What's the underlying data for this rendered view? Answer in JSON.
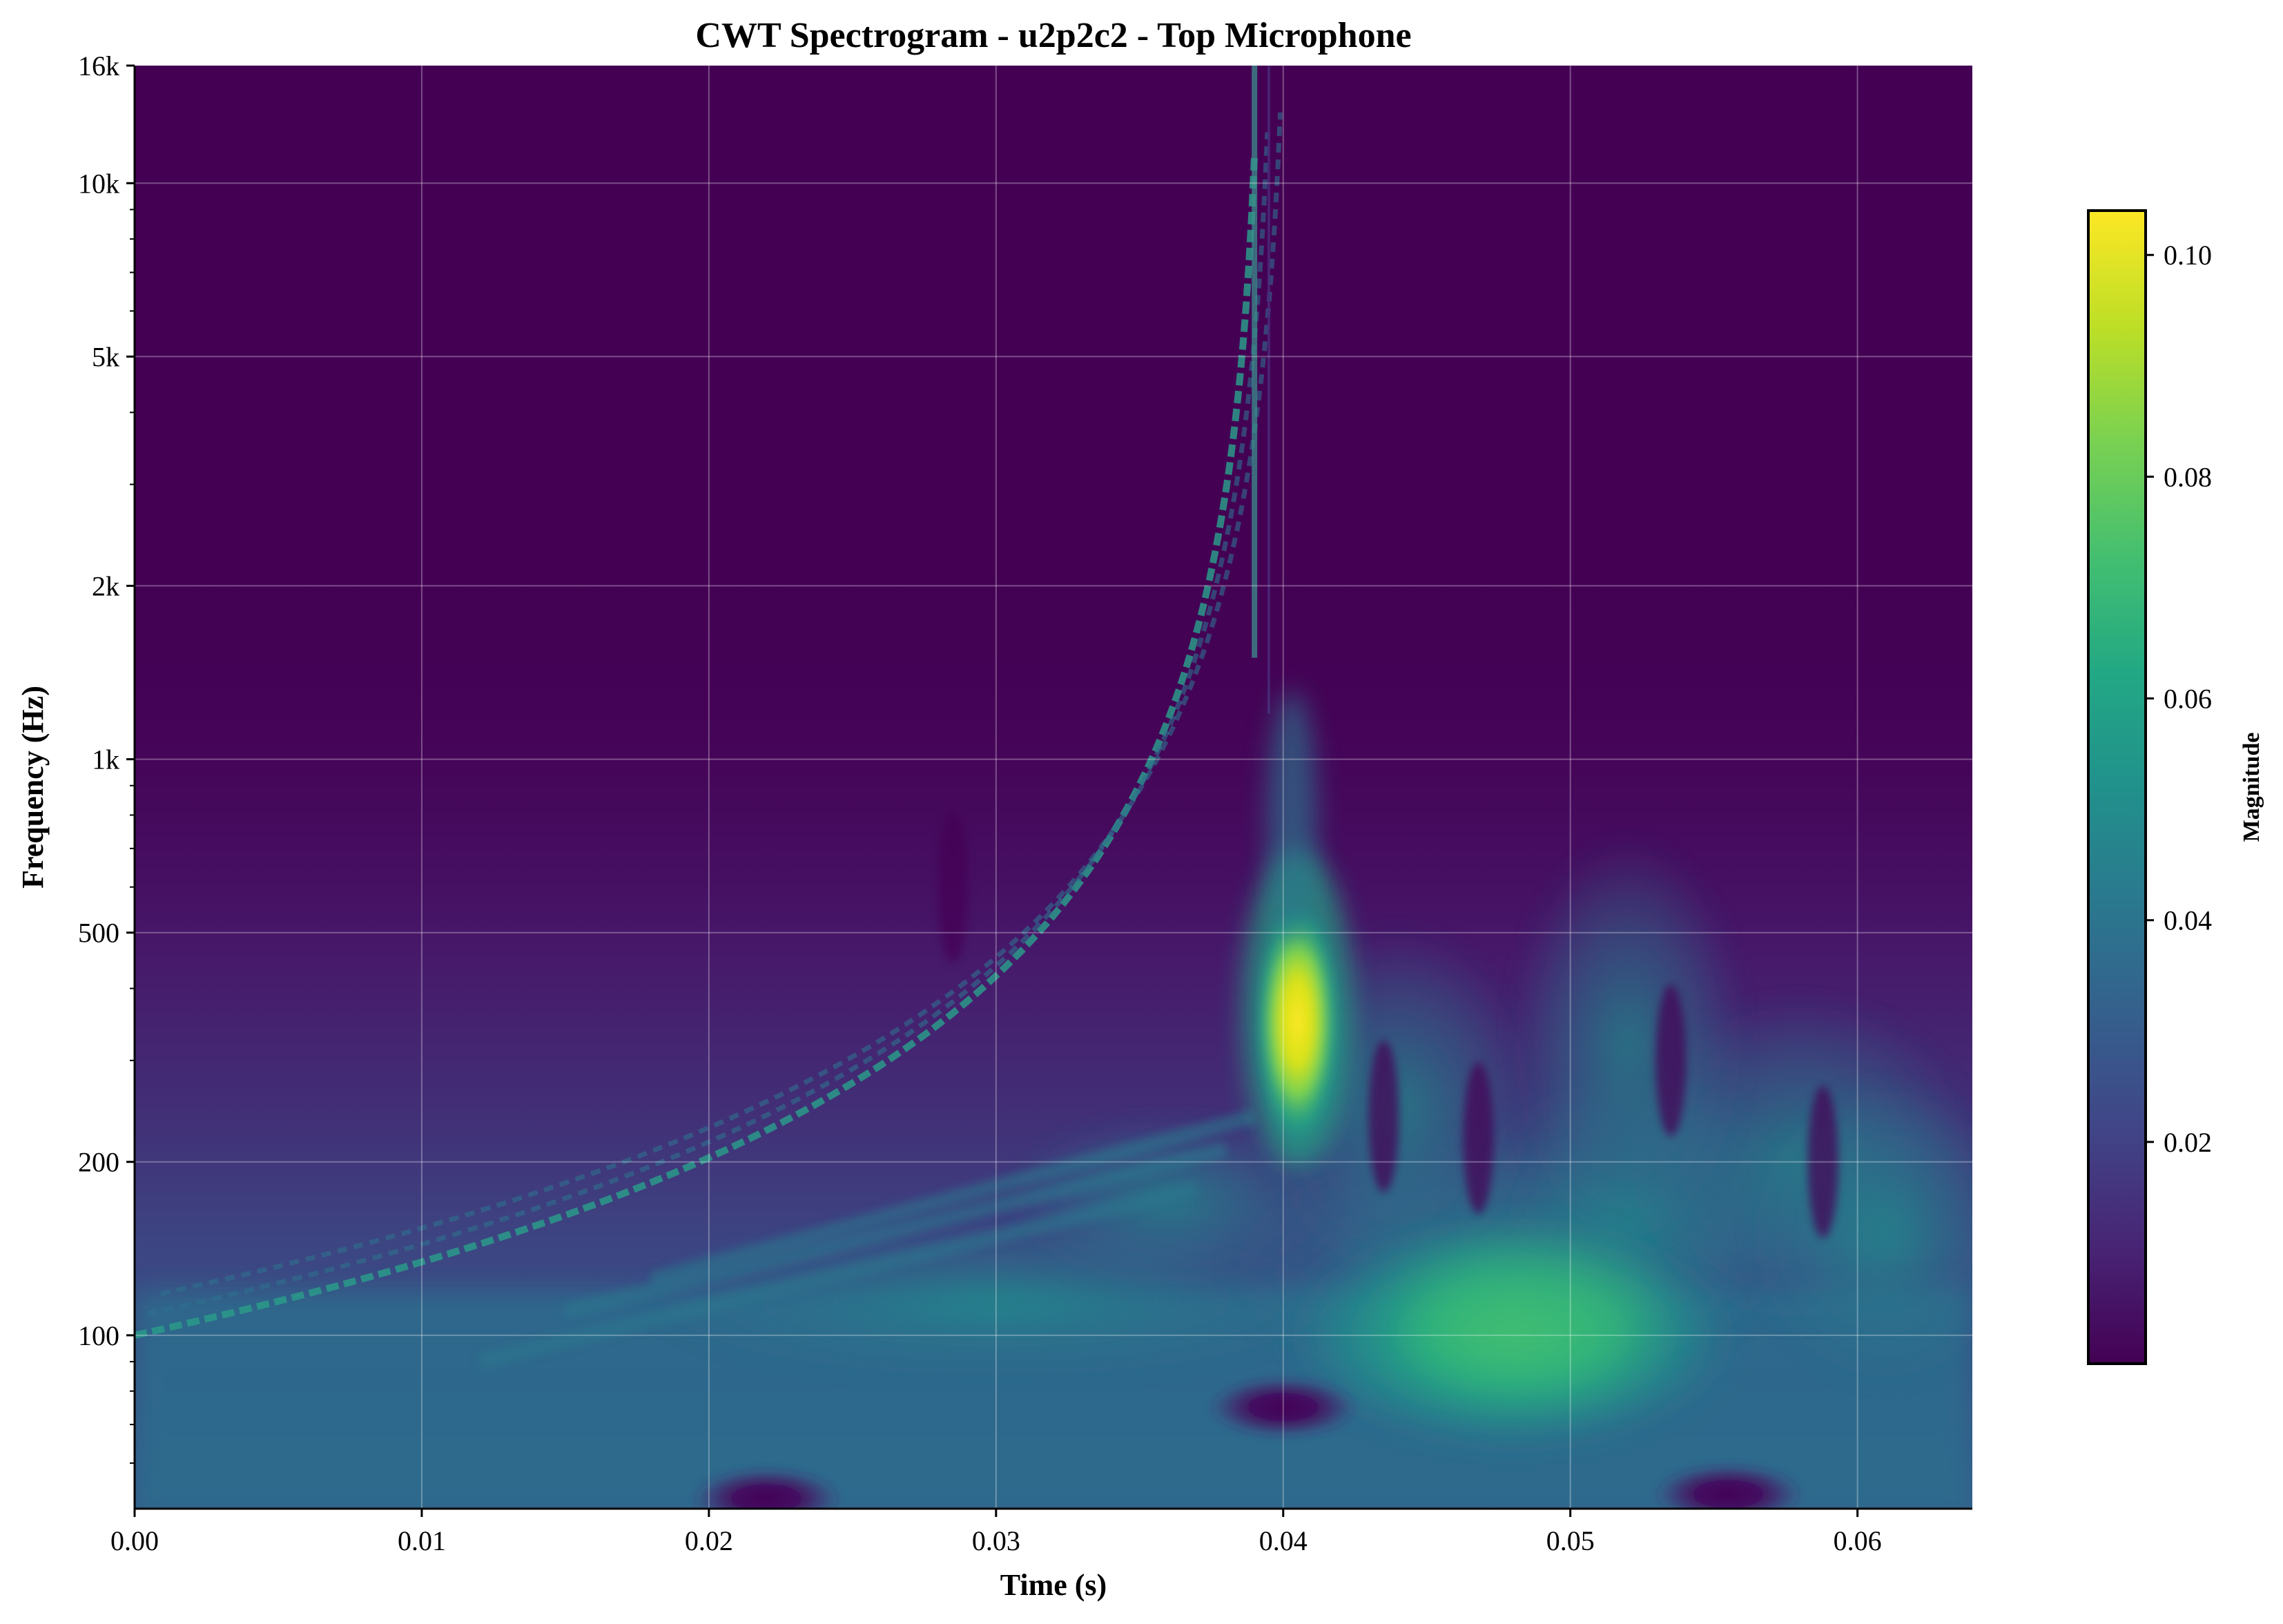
{
  "chart_data": {
    "type": "heatmap",
    "title": "CWT Spectrogram - u2p2c2 - Top Microphone",
    "xlabel": "Time (s)",
    "ylabel": "Frequency (Hz)",
    "xlim": [
      0.0,
      0.064
    ],
    "ylim": [
      50,
      16000
    ],
    "yscale": "log",
    "grid": true,
    "colormap": "viridis",
    "x_ticks": [
      {
        "value": 0.0,
        "label": "0.00"
      },
      {
        "value": 0.01,
        "label": "0.01"
      },
      {
        "value": 0.02,
        "label": "0.02"
      },
      {
        "value": 0.03,
        "label": "0.03"
      },
      {
        "value": 0.04,
        "label": "0.04"
      },
      {
        "value": 0.05,
        "label": "0.05"
      },
      {
        "value": 0.06,
        "label": "0.06"
      }
    ],
    "y_ticks": [
      {
        "value": 100,
        "label": "100"
      },
      {
        "value": 200,
        "label": "200"
      },
      {
        "value": 500,
        "label": "500"
      },
      {
        "value": 1000,
        "label": "1k"
      },
      {
        "value": 2000,
        "label": "2k"
      },
      {
        "value": 5000,
        "label": "5k"
      },
      {
        "value": 10000,
        "label": "10k"
      },
      {
        "value": 16000,
        "label": "16k"
      }
    ],
    "colorbar": {
      "label": "Magnitude",
      "range": [
        0.0,
        0.104
      ],
      "ticks": [
        {
          "value": 0.02,
          "label": "0.02"
        },
        {
          "value": 0.04,
          "label": "0.04"
        },
        {
          "value": 0.06,
          "label": "0.06"
        },
        {
          "value": 0.08,
          "label": "0.08"
        },
        {
          "value": 0.1,
          "label": "0.10"
        }
      ]
    },
    "features": [
      {
        "kind": "peak",
        "time": 0.0405,
        "freq": 350,
        "magnitude": 0.1
      },
      {
        "kind": "broad_region",
        "time": 0.048,
        "freq": 100,
        "magnitude": 0.065
      },
      {
        "kind": "chirp_start",
        "time": 0.0,
        "freq": 100,
        "magnitude": 0.03
      },
      {
        "kind": "chirp_end",
        "time": 0.039,
        "freq": 16000,
        "magnitude": 0.035
      },
      {
        "kind": "low_band",
        "time_range": [
          0.0,
          0.064
        ],
        "freq_range": [
          50,
          120
        ],
        "magnitude": 0.035
      },
      {
        "kind": "null",
        "time": 0.04,
        "freq": 75,
        "magnitude": 0.003
      },
      {
        "kind": "null",
        "time": 0.0555,
        "freq": 53,
        "magnitude": 0.003
      },
      {
        "kind": "null",
        "time": 0.022,
        "freq": 51,
        "magnitude": 0.005
      }
    ]
  }
}
